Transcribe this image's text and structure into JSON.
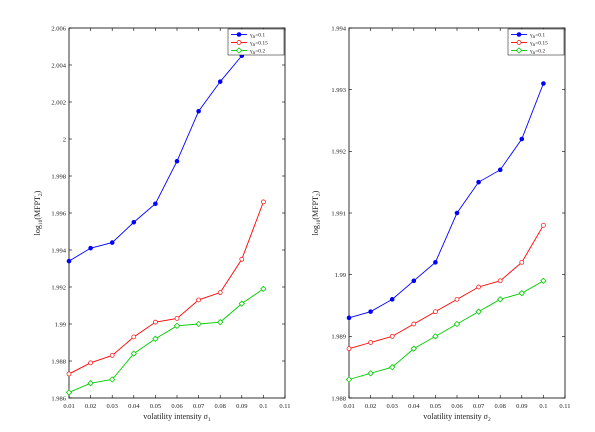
{
  "chart_data": [
    {
      "type": "line",
      "x": [
        0.01,
        0.02,
        0.03,
        0.04,
        0.05,
        0.06,
        0.07,
        0.08,
        0.09,
        0.1
      ],
      "xlim": [
        0.01,
        0.11
      ],
      "xticks": [
        "0.01",
        "0.02",
        "0.03",
        "0.04",
        "0.05",
        "0.06",
        "0.07",
        "0.08",
        "0.09",
        "0.1",
        "0.11"
      ],
      "xlabel": {
        "main": "volatility intensity σ",
        "sub": "1"
      },
      "ylabel": {
        "pre": "log",
        "sub1": "10",
        "mid": "(MFPT",
        "sub2": "2",
        "post": ")"
      },
      "ylim": [
        1.986,
        2.006
      ],
      "yticks": [
        "1.986",
        "1.988",
        "1.99",
        "1.992",
        "1.994",
        "1.996",
        "1.998",
        "2",
        "2.002",
        "2.004",
        "2.006"
      ],
      "legend_position": "top-right",
      "grid": false,
      "series": [
        {
          "name": "γ=0.1",
          "name_main": "γ",
          "name_sub": "n",
          "name_rest": "=0.1",
          "color": "#0000ff",
          "marker": "dot",
          "values": [
            1.9934,
            1.9941,
            1.9944,
            1.9955,
            1.9965,
            1.9988,
            2.0015,
            2.0031,
            2.0045,
            2.0058
          ]
        },
        {
          "name": "γ=0.15",
          "name_main": "γ",
          "name_sub": "n",
          "name_rest": "=0.15",
          "color": "#ff0000",
          "marker": "circle",
          "values": [
            1.9873,
            1.9879,
            1.9883,
            1.9893,
            1.9901,
            1.9903,
            1.9913,
            1.9917,
            1.9935,
            1.9966
          ]
        },
        {
          "name": "γ=0.2",
          "name_main": "γ",
          "name_sub": "n",
          "name_rest": "=0.2",
          "color": "#00cc00",
          "marker": "diamond",
          "values": [
            1.9863,
            1.9868,
            1.987,
            1.9884,
            1.9892,
            1.9899,
            1.99,
            1.9901,
            1.9911,
            1.9919
          ]
        }
      ]
    },
    {
      "type": "line",
      "x": [
        0.01,
        0.02,
        0.03,
        0.04,
        0.05,
        0.06,
        0.07,
        0.08,
        0.09,
        0.1
      ],
      "xlim": [
        0.01,
        0.11
      ],
      "xticks": [
        "0.01",
        "0.02",
        "0.03",
        "0.04",
        "0.05",
        "0.06",
        "0.07",
        "0.08",
        "0.09",
        "0.1",
        "0.11"
      ],
      "xlabel": {
        "main": "volatility intensity σ",
        "sub": "2"
      },
      "ylabel": {
        "pre": "log",
        "sub1": "10",
        "mid": "(MFPT",
        "sub2": "2",
        "post": ")"
      },
      "ylim": [
        1.988,
        1.994
      ],
      "yticks": [
        "1.988",
        "1.989",
        "1.99",
        "1.991",
        "1.992",
        "1.993",
        "1.994"
      ],
      "legend_position": "top-right",
      "grid": false,
      "series": [
        {
          "name": "γ=0.1",
          "name_main": "γ",
          "name_sub": "n",
          "name_rest": "=0.1",
          "color": "#0000ff",
          "marker": "dot",
          "values": [
            1.9893,
            1.9894,
            1.9896,
            1.9899,
            1.9902,
            1.991,
            1.9915,
            1.9917,
            1.9922,
            1.9931
          ]
        },
        {
          "name": "γ=0.15",
          "name_main": "γ",
          "name_sub": "n",
          "name_rest": "=0.15",
          "color": "#ff0000",
          "marker": "circle",
          "values": [
            1.9888,
            1.9889,
            1.989,
            1.9892,
            1.9894,
            1.9896,
            1.9898,
            1.9899,
            1.9902,
            1.9908
          ]
        },
        {
          "name": "γ=0.2",
          "name_main": "γ",
          "name_sub": "n",
          "name_rest": "=0.2",
          "color": "#00cc00",
          "marker": "diamond",
          "values": [
            1.9883,
            1.9884,
            1.9885,
            1.9888,
            1.989,
            1.9892,
            1.9894,
            1.9896,
            1.9897,
            1.9899
          ]
        }
      ]
    }
  ]
}
